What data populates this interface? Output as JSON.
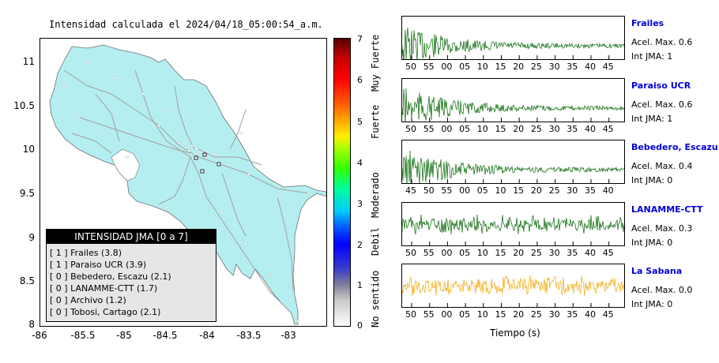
{
  "map": {
    "title": "Intensidad calculada el 2024/04/18_05:00:54_a.m.",
    "yticks": [
      "11",
      "10.5",
      "10",
      "9.5",
      "9",
      "8.5",
      "8"
    ],
    "xticks": [
      "-86",
      "-85.5",
      "-85",
      "-84.5",
      "-84",
      "-83.5",
      "-83"
    ],
    "legend_title": "INTENSIDAD JMA [0 a 7]",
    "legend_items": [
      "[ 1 ] Frailes (3.8)",
      "[ 1 ] Paraiso UCR (3.9)",
      "[ 0 ] Bebedero, Escazu (2.1)",
      "[ 0 ] LANAMME-CTT (1.7)",
      "[ 0 ] Archivo (1.2)",
      "[ 0 ] Tobosi, Cartago (2.1)"
    ],
    "land_color": "#b4eef0",
    "road_color": "#a0a0a0"
  },
  "colorbar": {
    "ticks": [
      "7",
      "6",
      "5",
      "4",
      "3",
      "2",
      "1",
      "0"
    ],
    "categories": [
      "Muy Fuerte",
      "Fuerte",
      "Moderado",
      "Debil",
      "No sentido"
    ]
  },
  "traces": [
    {
      "name": "Frailes",
      "acel": "Acel. Max. 0.6",
      "int": "Int JMA: 1",
      "color": "#006400",
      "ticks": [
        "50",
        "55",
        "00",
        "05",
        "10",
        "15",
        "20",
        "25",
        "30",
        "35",
        "40",
        "45"
      ]
    },
    {
      "name": "Paraiso UCR",
      "acel": "Acel. Max. 0.6",
      "int": "Int JMA: 1",
      "color": "#006400",
      "ticks": [
        "50",
        "55",
        "00",
        "05",
        "10",
        "15",
        "20",
        "25",
        "30",
        "35",
        "40",
        "45"
      ]
    },
    {
      "name": "Bebedero, Escazu",
      "acel": "Acel. Max. 0.4",
      "int": "Int JMA: 0",
      "color": "#006400",
      "ticks": [
        "45",
        "50",
        "55",
        "00",
        "05",
        "10",
        "15",
        "20",
        "25",
        "30",
        "35",
        "40"
      ]
    },
    {
      "name": "LANAMME-CTT",
      "acel": "Acel. Max. 0.3",
      "int": "Int JMA: 0",
      "color": "#006400",
      "ticks": [
        "50",
        "55",
        "00",
        "05",
        "10",
        "15",
        "20",
        "25",
        "30",
        "35",
        "40",
        "45"
      ]
    },
    {
      "name": "La Sabana",
      "acel": "Acel. Max. 0.0",
      "int": "Int JMA: 0",
      "color": "#f2a800",
      "ticks": [
        "50",
        "55",
        "00",
        "05",
        "10",
        "15",
        "20",
        "25",
        "30",
        "35",
        "40",
        "45"
      ]
    }
  ],
  "xlabel": "Tiempo (s)"
}
